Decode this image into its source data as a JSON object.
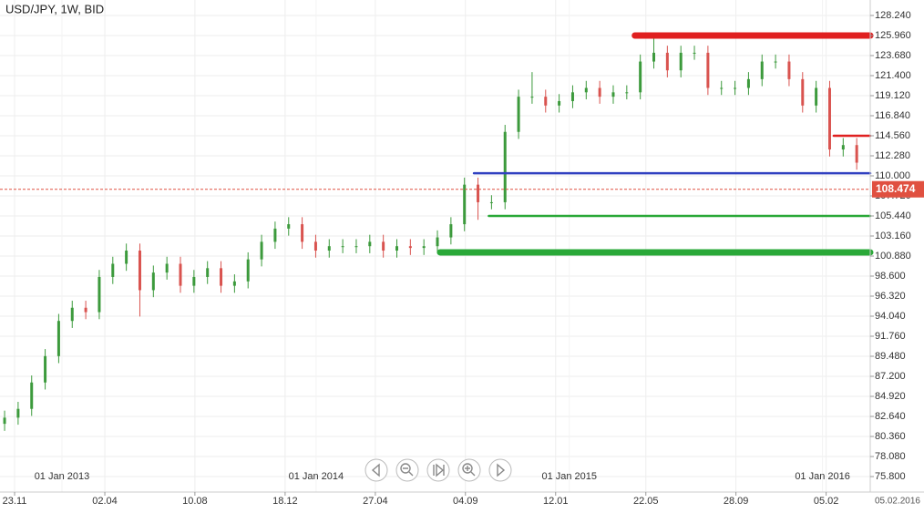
{
  "chart_data": {
    "type": "ohlc",
    "title": "USD/JPY, 1W, BID",
    "categories": [
      null,
      null,
      null,
      null,
      null,
      null,
      null,
      null,
      null,
      null,
      null,
      null,
      null,
      null,
      null,
      null,
      null,
      null,
      null,
      null,
      null,
      null,
      null,
      null,
      null,
      null,
      null,
      null,
      null,
      null,
      null,
      null,
      null,
      null,
      null,
      null,
      null,
      null,
      null,
      null,
      null,
      null,
      null,
      null,
      null,
      null,
      null,
      null,
      null,
      null,
      null,
      null,
      null,
      null,
      null,
      null,
      null,
      null,
      null,
      null,
      null,
      null,
      null,
      null
    ],
    "open": [
      81.8,
      82.5,
      83.5,
      86.5,
      89.5,
      93.5,
      95,
      94.5,
      98.5,
      100,
      101.5,
      97,
      99,
      100,
      97.5,
      98.5,
      99.5,
      97.5,
      98,
      100.5,
      102.5,
      104,
      104.5,
      102.5,
      101.5,
      102,
      102,
      102,
      102.5,
      101.5,
      102,
      101.8,
      102,
      103,
      104.5,
      109,
      107,
      107,
      115,
      119,
      119,
      118,
      118.5,
      119.5,
      120,
      119,
      119.5,
      119.5,
      123,
      124,
      122,
      124,
      124,
      120,
      120,
      120,
      121,
      123,
      123,
      121,
      118,
      120,
      113,
      113.5
    ],
    "high": [
      83.3,
      84.3,
      87.3,
      90.3,
      94.3,
      95.8,
      95.8,
      99.3,
      100.8,
      102.3,
      102.3,
      99.8,
      100.8,
      100.8,
      99.3,
      100.3,
      100.3,
      98.8,
      101.3,
      103.3,
      104.8,
      105.3,
      105.3,
      103.3,
      102.8,
      102.8,
      102.8,
      103.3,
      103.3,
      102.8,
      102.8,
      102.8,
      103.8,
      105.3,
      109.8,
      109.8,
      107.8,
      115.8,
      119.8,
      121.8,
      119.8,
      119.3,
      120.3,
      120.8,
      120.8,
      120.3,
      120.3,
      123.8,
      125.9,
      124.8,
      124.8,
      124.8,
      124.8,
      120.8,
      120.8,
      121.8,
      123.8,
      123.8,
      123.8,
      121.8,
      120.8,
      120.8,
      114.3,
      114.3
    ],
    "low": [
      81,
      81.7,
      82.7,
      85.7,
      88.7,
      92.7,
      93.7,
      93.7,
      97.7,
      99.2,
      94,
      96.2,
      98.2,
      96.7,
      96.7,
      97.7,
      96.7,
      96.7,
      97.2,
      99.7,
      101.7,
      103.2,
      101.7,
      100.7,
      100.7,
      101.2,
      101.2,
      101.2,
      100.7,
      100.7,
      101,
      101,
      101.2,
      102.2,
      103.7,
      105,
      106.2,
      106.2,
      114.2,
      118.2,
      117.2,
      117.2,
      117.7,
      118.7,
      118.2,
      118.2,
      118.7,
      118.7,
      122.2,
      121.2,
      121.2,
      123.2,
      119.2,
      119.2,
      119.2,
      119.2,
      120.2,
      122.2,
      120.2,
      117.2,
      117.2,
      112.2,
      112.2,
      110.7
    ],
    "close": [
      82.5,
      83.5,
      86.5,
      89.5,
      93.5,
      95,
      94.5,
      98.5,
      100,
      101.5,
      97,
      99,
      100,
      97.5,
      98.5,
      99.5,
      97.5,
      98,
      100.5,
      102.5,
      104,
      104.5,
      102.5,
      101.5,
      102,
      102,
      102,
      102.5,
      101.5,
      102,
      101.8,
      102,
      103,
      104.5,
      109,
      107,
      107,
      115,
      119,
      119,
      118,
      118.5,
      119.5,
      120,
      119,
      119.5,
      119.5,
      123,
      124,
      122,
      124,
      124,
      120,
      120,
      120,
      121,
      123,
      123,
      121,
      118,
      120,
      113,
      113.5,
      111.5
    ],
    "up_color": "#3c9a3c",
    "down_color": "#d9534f",
    "xlim": [
      -0.34,
      64
    ],
    "ylim": [
      74.04,
      130.0
    ],
    "yticks": [
      {
        "value": 128.24,
        "label": "128.240"
      },
      {
        "value": 125.96,
        "label": "125.960"
      },
      {
        "value": 123.68,
        "label": "123.680"
      },
      {
        "value": 121.4,
        "label": "121.400"
      },
      {
        "value": 119.12,
        "label": "119.120"
      },
      {
        "value": 116.84,
        "label": "116.840"
      },
      {
        "value": 114.56,
        "label": "114.560"
      },
      {
        "value": 112.28,
        "label": "112.280"
      },
      {
        "value": 110,
        "label": "110.000"
      },
      {
        "value": 107.72,
        "label": "107.720"
      },
      {
        "value": 105.44,
        "label": "105.440"
      },
      {
        "value": 103.16,
        "label": "103.160"
      },
      {
        "value": 100.88,
        "label": "100.880"
      },
      {
        "value": 98.6,
        "label": "98.600"
      },
      {
        "value": 96.32,
        "label": "96.320"
      },
      {
        "value": 94.04,
        "label": "94.040"
      },
      {
        "value": 91.76,
        "label": "91.760"
      },
      {
        "value": 89.48,
        "label": "89.480"
      },
      {
        "value": 87.2,
        "label": "87.200"
      },
      {
        "value": 84.92,
        "label": "84.920"
      },
      {
        "value": 82.64,
        "label": "82.640"
      },
      {
        "value": 80.36,
        "label": "80.360"
      },
      {
        "value": 78.08,
        "label": "78.080"
      },
      {
        "value": 75.8,
        "label": "75.800"
      }
    ],
    "xticks": [
      {
        "value": 0.74,
        "label": "23.11"
      },
      {
        "value": 7.41,
        "label": "02.04"
      },
      {
        "value": 14.07,
        "label": "10.08"
      },
      {
        "value": 20.74,
        "label": "18.12"
      },
      {
        "value": 27.41,
        "label": "27.04"
      },
      {
        "value": 34.07,
        "label": "04.09"
      },
      {
        "value": 40.74,
        "label": "12.01"
      },
      {
        "value": 47.41,
        "label": "22.05"
      },
      {
        "value": 54.07,
        "label": "28.09"
      },
      {
        "value": 60.74,
        "label": "05.02"
      }
    ],
    "year_ticks": [
      {
        "value": 4.24,
        "label": "01 Jan 2013"
      },
      {
        "value": 23.03,
        "label": "01 Jan 2014"
      },
      {
        "value": 41.75,
        "label": "01 Jan 2015"
      },
      {
        "value": 60.47,
        "label": "01 Jan 2016"
      }
    ],
    "levels": [
      {
        "value": 125.96,
        "from": 46.6,
        "color": "#e02020",
        "weight": "thick"
      },
      {
        "value": 114.56,
        "from": 61.3,
        "color": "#e02020",
        "weight": "thin"
      },
      {
        "value": 110.3,
        "from": 34.7,
        "color": "#3040c0",
        "weight": "thin"
      },
      {
        "value": 105.44,
        "from": 35.8,
        "color": "#2aa838",
        "weight": "thin"
      },
      {
        "value": 101.3,
        "from": 32.2,
        "color": "#2aa838",
        "weight": "thick"
      }
    ],
    "current_price": {
      "value": 108.474,
      "label": "108.474",
      "color": "#e05040"
    },
    "end_date": "05.02.2016",
    "grid": true
  }
}
